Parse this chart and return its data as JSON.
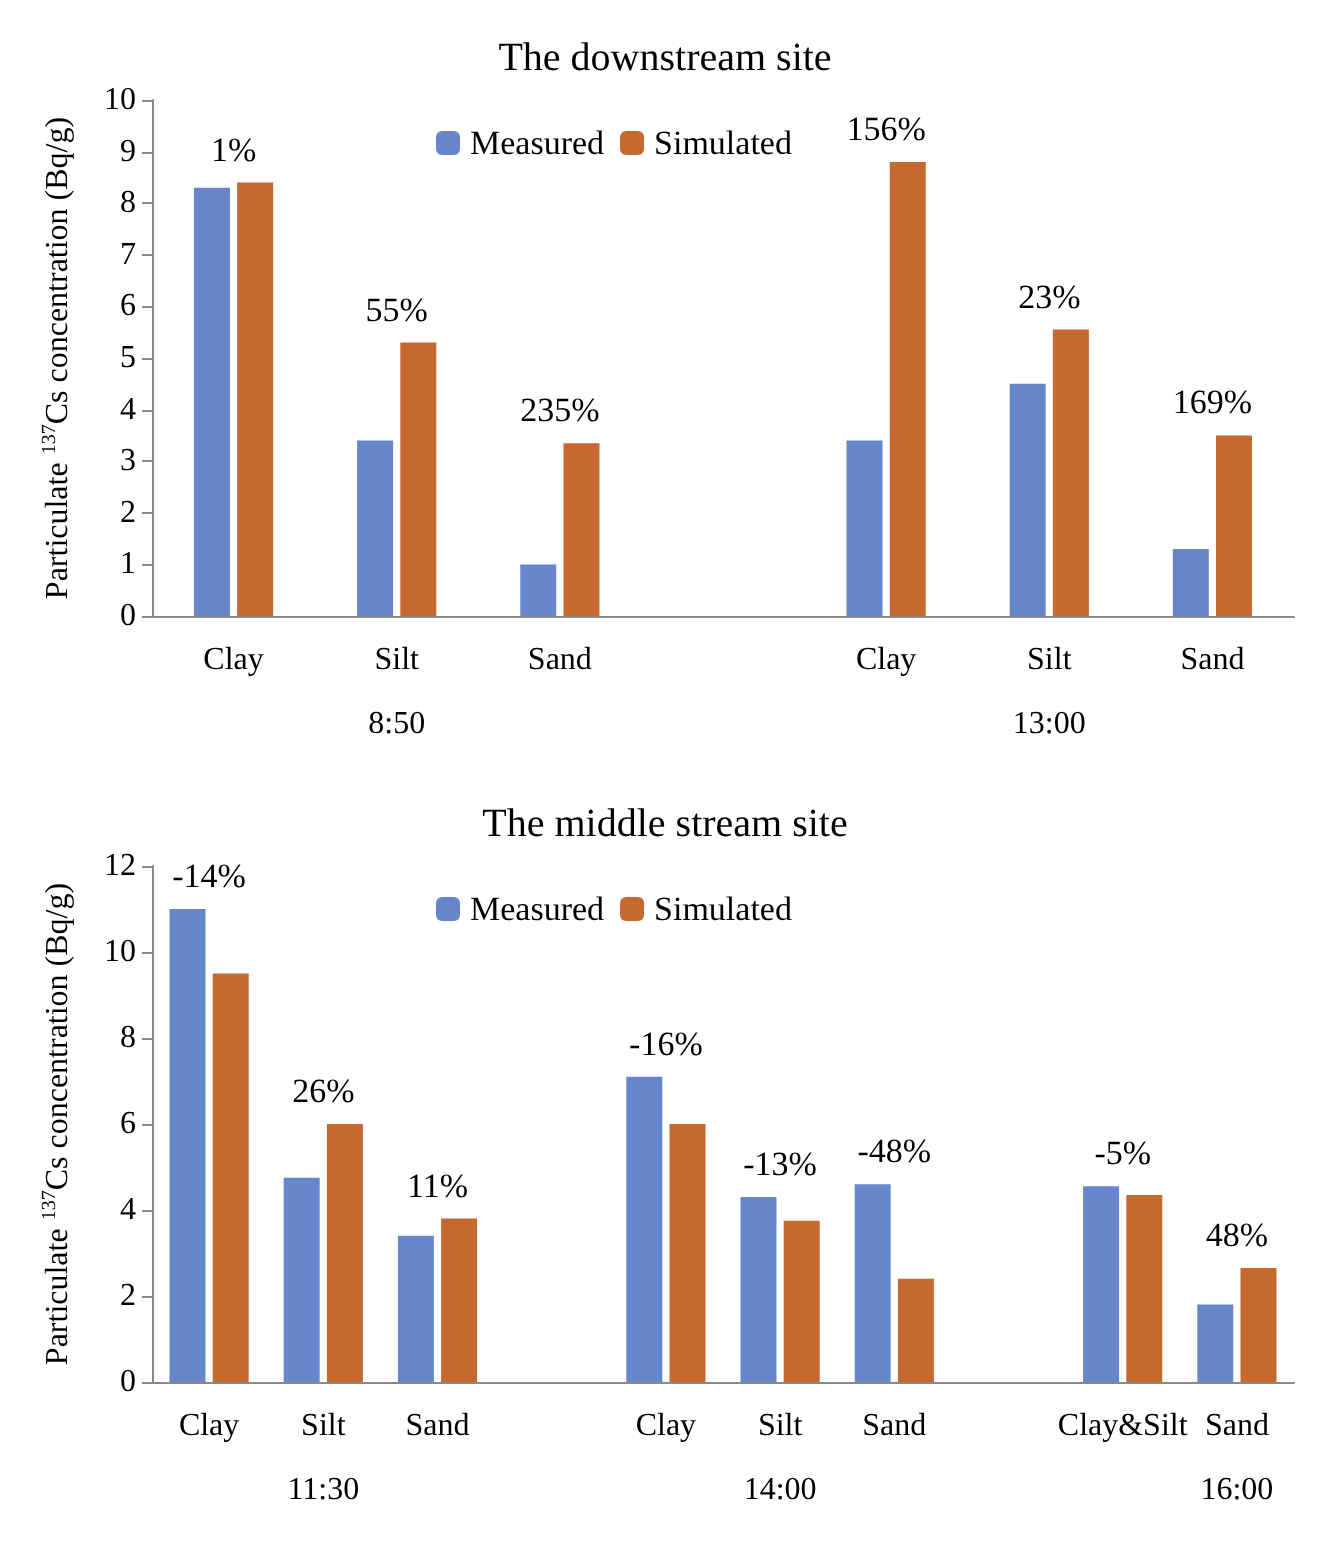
{
  "chart_data": [
    {
      "type": "bar",
      "title": "The downstream site",
      "ylabel": "Particulate $^{137}$Cs concentration (Bq/g)",
      "categories": [
        "Clay",
        "Silt",
        "Sand",
        null,
        "Clay",
        "Silt",
        "Sand"
      ],
      "series": [
        {
          "name": "Measured",
          "color": "#6787cd",
          "values": [
            8.3,
            3.4,
            1.0,
            null,
            3.4,
            4.5,
            1.3
          ]
        },
        {
          "name": "Simulated",
          "color": "#c5692f",
          "values": [
            8.4,
            5.3,
            3.35,
            null,
            8.8,
            5.55,
            3.5
          ]
        }
      ],
      "ylim": [
        0,
        10
      ],
      "yticks": [
        0,
        1,
        2,
        3,
        4,
        5,
        6,
        7,
        8,
        9,
        10
      ],
      "grid": false,
      "legend": "top",
      "annotations": [
        "1%",
        "55%",
        "235%",
        "156%",
        "23%",
        "169%",
        "8:50",
        "13:00"
      ]
    },
    {
      "type": "bar",
      "title": "The middle stream site",
      "ylabel": "Particulate $^{137}$Cs concentration (Bq/g)",
      "categories": [
        "Clay",
        "Silt",
        "Sand",
        null,
        "Clay",
        "Silt",
        "Sand",
        null,
        "Clay&Silt",
        "Sand"
      ],
      "series": [
        {
          "name": "Measured",
          "color": "#6787cd",
          "values": [
            11.0,
            4.75,
            3.4,
            null,
            7.1,
            4.3,
            4.6,
            null,
            4.55,
            1.8
          ]
        },
        {
          "name": "Simulated",
          "color": "#c5692f",
          "values": [
            9.5,
            6.0,
            3.8,
            null,
            6.0,
            3.75,
            2.4,
            null,
            4.35,
            2.65
          ]
        }
      ],
      "ylim": [
        0,
        12
      ],
      "yticks": [
        0,
        2,
        4,
        6,
        8,
        10,
        12
      ],
      "grid": false,
      "legend": "top",
      "annotations": [
        "-14%",
        "26%",
        "11%",
        "-16%",
        "-13%",
        "-48%",
        "-5%",
        "48%",
        "11:30",
        "14:00",
        "16:00"
      ]
    }
  ]
}
